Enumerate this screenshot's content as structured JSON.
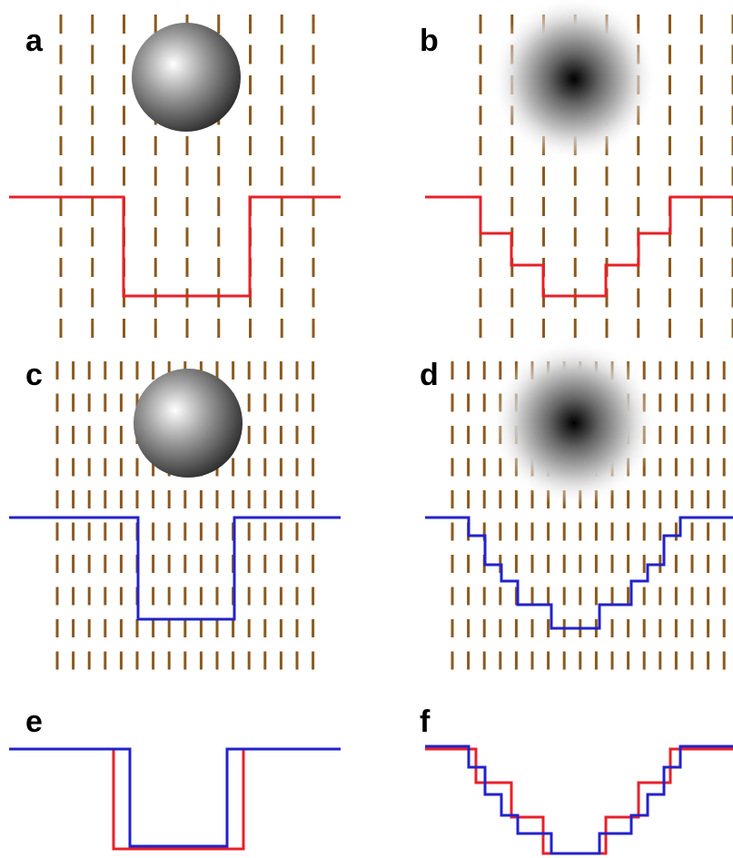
{
  "panels": {
    "a": "a",
    "b": "b",
    "c": "c",
    "d": "d",
    "e": "e",
    "f": "f"
  }
}
